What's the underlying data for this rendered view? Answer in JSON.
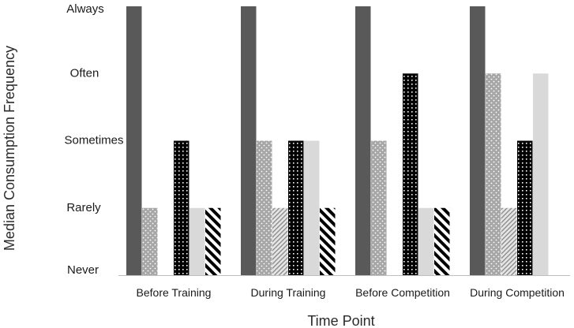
{
  "chart_data": {
    "type": "bar",
    "title": "",
    "xlabel": "Time Point",
    "ylabel": "Median Consumption Frequency",
    "y_levels": [
      "Never",
      "Rarely",
      "Sometimes",
      "Often",
      "Always"
    ],
    "ylim": [
      0,
      4
    ],
    "grid": false,
    "legend": "none",
    "categories": [
      "Before Training",
      "During Training",
      "Before Competition",
      "During Competition"
    ],
    "series": [
      {
        "pattern": "solid-dark",
        "color": "#595959",
        "values": [
          4,
          4,
          4,
          4
        ]
      },
      {
        "pattern": "dots-gray",
        "color": "#a6a6a6",
        "values": [
          1,
          2,
          2,
          3
        ]
      },
      {
        "pattern": "diagonal-light",
        "color": "#bfbfbf",
        "values": [
          0,
          1,
          0,
          1
        ]
      },
      {
        "pattern": "checker-black",
        "color": "#000000",
        "values": [
          2,
          2,
          3,
          2
        ]
      },
      {
        "pattern": "solid-light",
        "color": "#d9d9d9",
        "values": [
          1,
          2,
          1,
          3
        ]
      },
      {
        "pattern": "stripes-black",
        "color": "#000000",
        "values": [
          1,
          1,
          1,
          0
        ]
      }
    ]
  }
}
